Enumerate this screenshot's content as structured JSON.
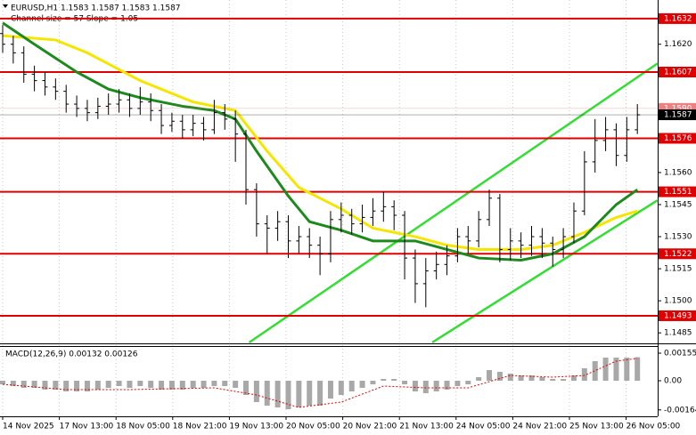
{
  "chart_data": {
    "type": "ohlc",
    "title": "EURUSD,H1  1.1583 1.1587 1.1583 1.1587",
    "subtitle": "Channel size = 57 Slope = 1.05",
    "categories": [
      "14 Nov 2025",
      "17 Nov 13:00",
      "18 Nov 05:00",
      "18 Nov 21:00",
      "19 Nov 13:00",
      "20 Nov 05:00",
      "20 Nov 21:00",
      "21 Nov 13:00",
      "24 Nov 05:00",
      "24 Nov 21:00",
      "25 Nov 13:00",
      "26 Nov 05:00"
    ],
    "color": "#000000",
    "open": [
      1.1625,
      1.162,
      1.1616,
      1.1606,
      1.1603,
      1.16,
      1.1598,
      1.1592,
      1.159,
      1.1588,
      1.1591,
      1.1592,
      1.1594,
      1.159,
      1.1593,
      1.1589,
      1.1582,
      1.1584,
      1.158,
      1.1583,
      1.158,
      1.1588,
      1.1585,
      1.1578,
      1.1552,
      1.1536,
      1.1534,
      1.1537,
      1.1528,
      1.153,
      1.1526,
      1.1522,
      1.1538,
      1.154,
      1.1536,
      1.1539,
      1.1542,
      1.1544,
      1.154,
      1.152,
      1.1508,
      1.1514,
      1.1517,
      1.1521,
      1.153,
      1.1528,
      1.1538,
      1.1548,
      1.1524,
      1.1528,
      1.1526,
      1.153,
      1.1527,
      1.1524,
      1.153,
      1.1542,
      1.1565,
      1.1575,
      1.158,
      1.1568,
      1.158
    ],
    "high": [
      1.1629,
      1.1624,
      1.1619,
      1.161,
      1.1607,
      1.1604,
      1.1601,
      1.1596,
      1.1594,
      1.1595,
      1.1597,
      1.1599,
      1.1597,
      1.16,
      1.1597,
      1.1592,
      1.1588,
      1.1587,
      1.1587,
      1.1586,
      1.1594,
      1.1592,
      1.1589,
      1.158,
      1.1555,
      1.154,
      1.1542,
      1.154,
      1.1535,
      1.1534,
      1.153,
      1.1542,
      1.1546,
      1.1543,
      1.1545,
      1.1548,
      1.1551,
      1.1547,
      1.1542,
      1.1524,
      1.152,
      1.1523,
      1.1526,
      1.1534,
      1.1535,
      1.1542,
      1.1552,
      1.155,
      1.1534,
      1.1532,
      1.1535,
      1.1534,
      1.153,
      1.1534,
      1.1546,
      1.157,
      1.1585,
      1.1586,
      1.1583,
      1.1586,
      1.1592
    ],
    "low": [
      1.1616,
      1.1611,
      1.1602,
      1.1598,
      1.1596,
      1.1594,
      1.1588,
      1.1586,
      1.1584,
      1.1585,
      1.1587,
      1.1588,
      1.1586,
      1.1587,
      1.1584,
      1.1578,
      1.1579,
      1.1576,
      1.1577,
      1.1575,
      1.1578,
      1.158,
      1.1565,
      1.1545,
      1.153,
      1.1522,
      1.1528,
      1.152,
      1.1522,
      1.152,
      1.1512,
      1.1518,
      1.1532,
      1.1531,
      1.1532,
      1.1535,
      1.1537,
      1.1533,
      1.151,
      1.1499,
      1.1497,
      1.151,
      1.1512,
      1.1518,
      1.1522,
      1.1525,
      1.1535,
      1.1518,
      1.1519,
      1.152,
      1.1521,
      1.152,
      1.1516,
      1.152,
      1.1527,
      1.154,
      1.156,
      1.157,
      1.1563,
      1.1565,
      1.1578
    ],
    "close": [
      1.162,
      1.1616,
      1.1606,
      1.1603,
      1.16,
      1.1598,
      1.1592,
      1.159,
      1.1588,
      1.1591,
      1.1592,
      1.1594,
      1.159,
      1.1593,
      1.1589,
      1.1582,
      1.1584,
      1.158,
      1.1583,
      1.158,
      1.1588,
      1.1585,
      1.1578,
      1.1552,
      1.1536,
      1.1534,
      1.1537,
      1.1528,
      1.153,
      1.1526,
      1.1522,
      1.1538,
      1.154,
      1.1536,
      1.1539,
      1.1542,
      1.1544,
      1.154,
      1.152,
      1.1508,
      1.1514,
      1.1517,
      1.1521,
      1.153,
      1.1528,
      1.1538,
      1.1548,
      1.1524,
      1.1528,
      1.1526,
      1.153,
      1.1527,
      1.1524,
      1.153,
      1.1542,
      1.1565,
      1.1575,
      1.158,
      1.1568,
      1.158,
      1.1587
    ],
    "ma": [
      {
        "color": "#f5e600",
        "x": [
          0,
          5,
          8,
          13,
          18,
          22,
          25,
          28,
          32,
          35,
          39,
          42,
          45,
          49,
          52,
          55,
          58,
          60
        ],
        "values": [
          1.1624,
          1.1622,
          1.1616,
          1.1603,
          1.1593,
          1.1589,
          1.157,
          1.1553,
          1.1543,
          1.1534,
          1.153,
          1.1526,
          1.1524,
          1.1524,
          1.1526,
          1.1532,
          1.1539,
          1.1542
        ]
      },
      {
        "color": "#1e8a1e",
        "x": [
          0,
          3,
          7,
          10,
          13,
          17,
          20,
          22,
          24,
          27,
          29,
          32,
          35,
          39,
          42,
          45,
          49,
          52,
          55,
          58,
          60
        ],
        "values": [
          1.163,
          1.162,
          1.1607,
          1.1599,
          1.1595,
          1.1591,
          1.1589,
          1.1585,
          1.157,
          1.1549,
          1.1537,
          1.1533,
          1.1528,
          1.1528,
          1.1524,
          1.152,
          1.1519,
          1.1522,
          1.153,
          1.1545,
          1.1552
        ]
      }
    ],
    "trend_lines": [
      {
        "color": "#33dd33",
        "x": [
          23.3,
          61.9
        ],
        "values": [
          1.14805,
          1.1611
        ]
      },
      {
        "color": "#33dd33",
        "x": [
          40.6,
          61.9
        ],
        "values": [
          1.14805,
          1.1547
        ]
      }
    ],
    "levels": [
      1.1632,
      1.1607,
      1.1576,
      1.1551,
      1.1522,
      1.1493
    ],
    "level_color": "#e00000",
    "price_labels": [
      {
        "value": 1.159,
        "label": "1.1590",
        "color": "#f08080"
      },
      {
        "value": 1.1587,
        "color": "#000000"
      }
    ],
    "ylim": [
      1.14805,
      1.16407
    ],
    "yticks": [
      1.1485,
      {
        "value": 1.15,
        "label": "1.1500"
      },
      1.1515,
      {
        "value": 1.153,
        "label": "1.1530"
      },
      1.1545,
      {
        "value": 1.156,
        "label": "1.1560"
      },
      {
        "value": 1.162,
        "label": "1.1620"
      }
    ],
    "macd": {
      "title": "MACD(12,26,9) 0.00132 0.00126",
      "histogram_color": "#a8a8a8",
      "signal_color": "#e00000",
      "histogram": [
        -0.0002,
        -0.0003,
        -0.0004,
        -0.0004,
        -0.0005,
        -0.0005,
        -0.0006,
        -0.0006,
        -0.0006,
        -0.0005,
        -0.0004,
        -0.0003,
        -0.0004,
        -0.0003,
        -0.0004,
        -0.0005,
        -0.0005,
        -0.0005,
        -0.0004,
        -0.0004,
        -0.0003,
        -0.0003,
        -0.0004,
        -0.0008,
        -0.0012,
        -0.0014,
        -0.0015,
        -0.0016,
        -0.0015,
        -0.0014,
        -0.0014,
        -0.001,
        -0.0008,
        -0.0006,
        -0.0004,
        -0.0002,
        0.0001,
        0.0001,
        -0.0002,
        -0.0006,
        -0.0007,
        -0.0006,
        -0.0005,
        -0.0003,
        -0.0002,
        0.0002,
        0.0006,
        0.0005,
        0.0004,
        0.0003,
        0.0003,
        0.0002,
        0.0001,
        0.0001,
        0.0003,
        0.0007,
        0.0011,
        0.0013,
        0.0013,
        0.0013,
        0.00132
      ],
      "signal_x": [
        0,
        6,
        12,
        20,
        24,
        28,
        32,
        36,
        40,
        44,
        48,
        52,
        55,
        58,
        60
      ],
      "signal": [
        -0.0002,
        -0.0005,
        -0.0005,
        -0.0004,
        -0.0008,
        -0.0015,
        -0.0012,
        -0.0003,
        -0.0004,
        -0.0004,
        0.0003,
        0.0002,
        0.0003,
        0.0011,
        0.00126
      ],
      "y2lim": [
        -0.002,
        0.0019
      ],
      "y2ticks": [
        0.00155,
        {
          "value": 0,
          "label": "0.00"
        },
        -0.00164
      ]
    }
  }
}
